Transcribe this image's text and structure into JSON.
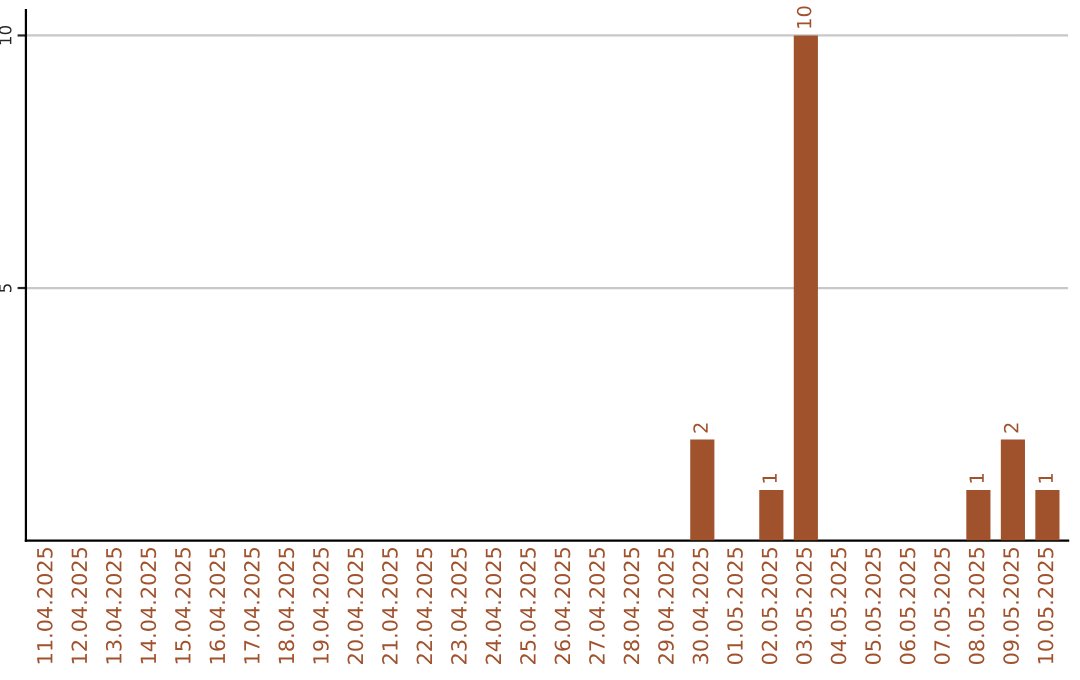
{
  "chart_data": {
    "type": "bar",
    "categories": [
      "11.04.2025",
      "12.04.2025",
      "13.04.2025",
      "14.04.2025",
      "15.04.2025",
      "16.04.2025",
      "17.04.2025",
      "18.04.2025",
      "19.04.2025",
      "20.04.2025",
      "21.04.2025",
      "22.04.2025",
      "23.04.2025",
      "24.04.2025",
      "25.04.2025",
      "26.04.2025",
      "27.04.2025",
      "28.04.2025",
      "29.04.2025",
      "30.04.2025",
      "01.05.2025",
      "02.05.2025",
      "03.05.2025",
      "04.05.2025",
      "05.05.2025",
      "06.05.2025",
      "07.05.2025",
      "08.05.2025",
      "09.05.2025",
      "10.05.2025"
    ],
    "values": [
      0,
      0,
      0,
      0,
      0,
      0,
      0,
      0,
      0,
      0,
      0,
      0,
      0,
      0,
      0,
      0,
      0,
      0,
      0,
      2,
      0,
      1,
      10,
      0,
      0,
      0,
      0,
      1,
      2,
      1
    ],
    "value_labels": [
      null,
      null,
      null,
      null,
      null,
      null,
      null,
      null,
      null,
      null,
      null,
      null,
      null,
      null,
      null,
      null,
      null,
      null,
      null,
      "2",
      null,
      "1",
      "10",
      null,
      null,
      null,
      null,
      "1",
      "2",
      "1"
    ],
    "color": "#a0522d",
    "ylim": [
      0,
      10.5
    ],
    "yticks": [
      5,
      10
    ],
    "grid": "y",
    "legend": false
  }
}
